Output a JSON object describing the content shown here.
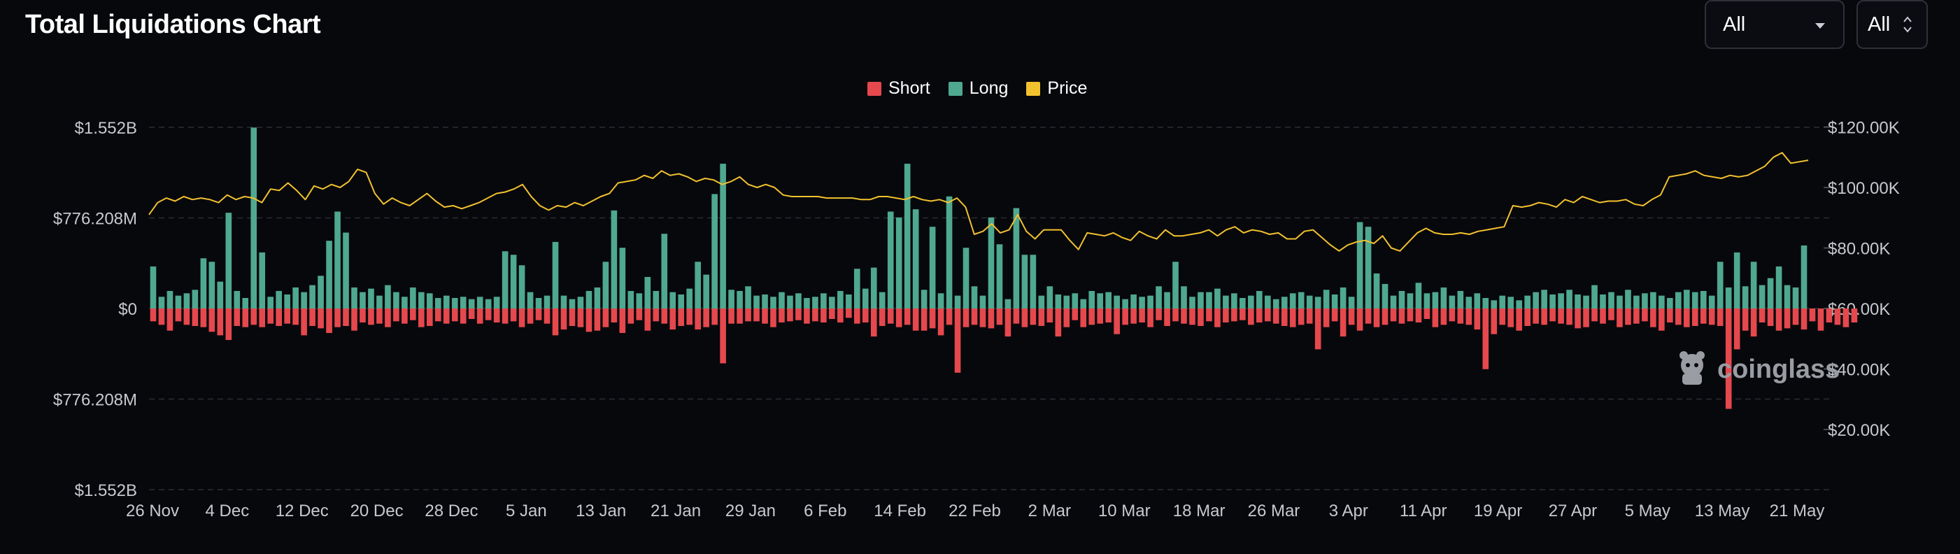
{
  "header": {
    "title": "Total Liquidations Chart",
    "range_select": "All",
    "unit_select": "All"
  },
  "legend": [
    {
      "label": "Short",
      "color": "#e5484d"
    },
    {
      "label": "Long",
      "color": "#4fa890"
    },
    {
      "label": "Price",
      "color": "#f2c12e"
    }
  ],
  "watermark": "coinglass",
  "chart_data": {
    "type": "bar",
    "left_axis": {
      "ticks": [
        "$1.552B",
        "$776.208M",
        "$0",
        "$776.208M",
        "$1.552B"
      ],
      "tick_values": [
        1552,
        776.208,
        0,
        -776.208,
        -1552
      ],
      "range": [
        -1552,
        1552
      ],
      "unit": "M USD"
    },
    "right_axis": {
      "ticks": [
        "$120.00K",
        "$100.00K",
        "$80.00K",
        "$60.00K",
        "$40.00K",
        "$20.00K"
      ],
      "tick_values": [
        120000,
        100000,
        80000,
        60000,
        40000,
        20000
      ],
      "range": [
        0,
        120000
      ]
    },
    "x_ticks": [
      "26 Nov",
      "4 Dec",
      "12 Dec",
      "20 Dec",
      "28 Dec",
      "5 Jan",
      "13 Jan",
      "21 Jan",
      "29 Jan",
      "6 Feb",
      "14 Feb",
      "22 Feb",
      "2 Mar",
      "10 Mar",
      "18 Mar",
      "26 Mar",
      "3 Apr",
      "11 Apr",
      "19 Apr",
      "27 Apr",
      "5 May",
      "13 May",
      "21 May"
    ],
    "grid": true,
    "legend_position": "top-center",
    "series": [
      {
        "name": "Long",
        "color": "#4fa890",
        "values": [
          360,
          100,
          150,
          110,
          130,
          160,
          430,
          400,
          230,
          820,
          150,
          90,
          1550,
          480,
          100,
          150,
          120,
          180,
          140,
          200,
          280,
          580,
          830,
          650,
          180,
          140,
          170,
          110,
          200,
          140,
          100,
          180,
          140,
          130,
          90,
          110,
          90,
          100,
          80,
          100,
          80,
          100,
          490,
          460,
          370,
          140,
          90,
          110,
          570,
          110,
          80,
          100,
          150,
          180,
          400,
          840,
          520,
          150,
          130,
          270,
          150,
          640,
          140,
          120,
          170,
          400,
          290,
          980,
          1240,
          160,
          150,
          190,
          110,
          120,
          100,
          140,
          110,
          130,
          90,
          100,
          130,
          100,
          150,
          120,
          340,
          170,
          350,
          140,
          830,
          780,
          1240,
          850,
          160,
          700,
          130,
          960,
          110,
          520,
          190,
          110,
          780,
          550,
          80,
          860,
          460,
          460,
          110,
          190,
          120,
          110,
          130,
          80,
          150,
          130,
          140,
          110,
          80,
          120,
          100,
          110,
          190,
          140,
          400,
          190,
          100,
          140,
          140,
          170,
          110,
          130,
          90,
          110,
          150,
          110,
          80,
          100,
          130,
          140,
          110,
          100,
          160,
          120,
          180,
          100,
          740,
          700,
          300,
          210,
          110,
          150,
          130,
          220,
          130,
          140,
          180,
          110,
          150,
          100,
          130,
          90,
          70,
          110,
          100,
          70,
          110,
          140,
          160,
          120,
          130,
          160,
          120,
          110,
          200,
          120,
          140,
          110,
          160,
          110,
          130,
          140,
          110,
          90,
          140,
          160,
          140,
          150,
          110,
          400,
          180,
          480,
          190,
          400,
          200,
          260,
          360,
          200,
          180,
          540
        ]
      },
      {
        "name": "Short",
        "color": "#e5484d",
        "values": [
          110,
          140,
          190,
          110,
          140,
          150,
          160,
          200,
          230,
          270,
          150,
          160,
          140,
          160,
          130,
          150,
          130,
          140,
          230,
          150,
          170,
          210,
          160,
          150,
          190,
          120,
          140,
          130,
          160,
          110,
          130,
          100,
          160,
          150,
          110,
          130,
          110,
          130,
          90,
          130,
          100,
          120,
          130,
          110,
          160,
          130,
          100,
          130,
          230,
          180,
          150,
          160,
          200,
          190,
          160,
          120,
          210,
          130,
          100,
          190,
          110,
          130,
          180,
          150,
          140,
          180,
          160,
          140,
          470,
          130,
          130,
          110,
          110,
          130,
          160,
          120,
          110,
          100,
          130,
          110,
          120,
          90,
          120,
          80,
          130,
          120,
          240,
          150,
          130,
          160,
          140,
          190,
          190,
          170,
          230,
          140,
          550,
          160,
          140,
          160,
          170,
          140,
          240,
          130,
          160,
          140,
          150,
          120,
          240,
          160,
          100,
          160,
          140,
          130,
          120,
          220,
          140,
          130,
          120,
          160,
          100,
          150,
          110,
          130,
          140,
          150,
          110,
          160,
          120,
          110,
          100,
          140,
          120,
          110,
          130,
          150,
          160,
          140,
          130,
          350,
          160,
          110,
          240,
          140,
          190,
          130,
          160,
          140,
          110,
          130,
          110,
          120,
          90,
          160,
          140,
          110,
          130,
          140,
          180,
          520,
          220,
          140,
          160,
          190,
          150,
          130,
          140,
          110,
          130,
          140,
          170,
          160,
          110,
          130,
          100,
          160,
          140,
          130,
          110,
          160,
          190,
          120,
          140,
          160,
          150,
          130,
          140,
          150,
          860,
          350,
          190,
          240,
          120,
          150,
          190,
          170,
          140,
          180,
          110,
          190,
          120,
          140,
          160,
          120
        ]
      },
      {
        "name": "Price",
        "color": "#f2c12e",
        "values": [
          91000,
          95000,
          96500,
          95500,
          97000,
          96000,
          96500,
          96000,
          95000,
          97500,
          96000,
          97000,
          96500,
          95000,
          99500,
          99000,
          101500,
          99000,
          96000,
          100500,
          99500,
          101000,
          100000,
          102000,
          106000,
          105000,
          98000,
          94500,
          96500,
          95000,
          94000,
          96000,
          98000,
          95500,
          93500,
          94000,
          93000,
          94000,
          95000,
          96500,
          98000,
          98500,
          99500,
          101000,
          97000,
          94000,
          92500,
          94000,
          93500,
          95000,
          94000,
          95500,
          97000,
          98000,
          101500,
          102000,
          102500,
          104000,
          103000,
          105500,
          104000,
          104500,
          103500,
          102000,
          103000,
          102500,
          101000,
          102000,
          103500,
          101000,
          100000,
          101000,
          100000,
          97500,
          97000,
          97000,
          97000,
          97000,
          96500,
          96500,
          96500,
          96500,
          96000,
          96000,
          97000,
          97000,
          96500,
          96000,
          97000,
          96000,
          95500,
          96000,
          95000,
          96500,
          93500,
          84500,
          85500,
          88000,
          85000,
          86000,
          91000,
          85500,
          83000,
          86000,
          86000,
          86000,
          82500,
          79500,
          85000,
          84500,
          84000,
          85000,
          83500,
          82500,
          85500,
          84000,
          83000,
          86000,
          84000,
          84000,
          84500,
          85000,
          86000,
          84000,
          86000,
          87000,
          85000,
          86000,
          85500,
          84500,
          85000,
          83000,
          83000,
          85500,
          86000,
          83500,
          81000,
          79000,
          81000,
          82000,
          82500,
          81500,
          84000,
          80000,
          79000,
          82000,
          85000,
          86500,
          85000,
          84500,
          84500,
          85000,
          84500,
          85500,
          86000,
          86500,
          87000,
          94000,
          93500,
          94000,
          95000,
          94500,
          93500,
          96000,
          95000,
          97000,
          96000,
          95000,
          95500,
          95500,
          96000,
          94500,
          94000,
          96000,
          97500,
          103500,
          104000,
          104500,
          105500,
          104000,
          103500,
          103000,
          104000,
          103500,
          104000,
          105500,
          107000,
          110000,
          111500,
          108000,
          108500,
          109000
        ]
      }
    ]
  }
}
